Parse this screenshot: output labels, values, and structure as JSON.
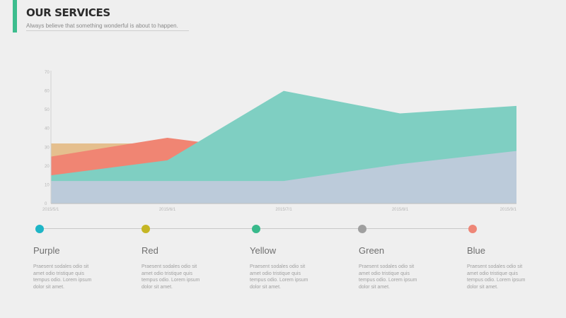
{
  "header": {
    "title": "OUR SERVICES",
    "subtitle": "Always believe that something wonderful is about to happen."
  },
  "colors": {
    "accent": "#3dbd8e"
  },
  "chart_data": {
    "type": "area",
    "x": [
      "2015/5/1",
      "2015/6/1",
      "2015/7/1",
      "2015/8/1",
      "2015/9/1"
    ],
    "ylim": [
      0,
      70
    ],
    "yticks": [
      "0",
      "10",
      "20",
      "30",
      "40",
      "50",
      "60",
      "70"
    ],
    "grid": false,
    "series": [
      {
        "color": "#e5bf8e",
        "values": [
          32,
          32,
          32,
          0,
          0
        ],
        "end_index": 1.3
      },
      {
        "color": "#f08573",
        "values": [
          25,
          35,
          27,
          0,
          0
        ],
        "end_index": 1.3
      },
      {
        "color": "#7fcfc2",
        "values": [
          15,
          23,
          60,
          48,
          52
        ]
      },
      {
        "color": "#bccbda",
        "values": [
          12,
          12,
          12,
          21,
          28
        ]
      }
    ]
  },
  "timeline": [
    {
      "label": "Purple",
      "color": "#1eb5c6",
      "desc": "Praesent sodales odio sit amet odio tristique quis tempus odio. Lorem ipsum dolor sit amet."
    },
    {
      "label": "Red",
      "color": "#c5b624",
      "desc": "Praesent sodales odio sit amet odio tristique quis tempus odio. Lorem ipsum dolor sit amet."
    },
    {
      "label": "Yellow",
      "color": "#38b98b",
      "desc": "Praesent sodales odio sit amet odio tristique quis tempus odio. Lorem ipsum dolor sit amet."
    },
    {
      "label": "Green",
      "color": "#9f9f9f",
      "desc": "Praesent sodales odio sit amet odio tristique quis tempus odio. Lorem ipsum dolor sit amet."
    },
    {
      "label": "Blue",
      "color": "#ee8677",
      "desc": "Praesent sodales odio sit amet odio tristique quis tempus odio. Lorem ipsum dolor sit amet."
    }
  ]
}
